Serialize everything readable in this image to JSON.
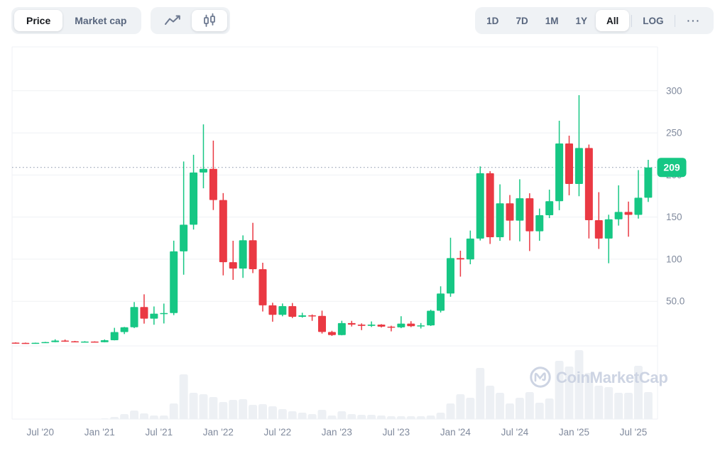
{
  "toolbar": {
    "metric_toggle": {
      "options": [
        "Price",
        "Market cap"
      ],
      "active": "Price"
    },
    "chart_type_toggle": {
      "options": [
        "line-chart",
        "candlestick-chart"
      ],
      "active": "candlestick-chart"
    },
    "range_buttons": [
      "1D",
      "7D",
      "1M",
      "1Y",
      "All"
    ],
    "active_range": "All",
    "log_button": "LOG",
    "more_button": "···"
  },
  "watermark": {
    "text": "CoinMarketCap"
  },
  "chart_data": {
    "type": "candlestick",
    "title": "",
    "xlabel": "",
    "ylabel": "",
    "ylim": [
      0,
      310
    ],
    "grid": true,
    "current_price": 209,
    "current_price_label": "209",
    "colors": {
      "up": "#16c784",
      "down": "#ea3943",
      "volume": "#edf0f4",
      "grid": "#eff1f4",
      "axis_text": "#808a9d",
      "dotted_line": "#9aa3b5",
      "watermark": "#cdd4e3",
      "badge_bg": "#16c784",
      "badge_text": "#ffffff"
    },
    "y_ticks": [
      {
        "label": "300",
        "value": 300
      },
      {
        "label": "250",
        "value": 250
      },
      {
        "label": "200",
        "value": 200
      },
      {
        "label": "150",
        "value": 150
      },
      {
        "label": "100",
        "value": 100
      },
      {
        "label": "50.0",
        "value": 50
      }
    ],
    "x_ticks": [
      {
        "label": "Jul '20",
        "index": 3
      },
      {
        "label": "Jan '21",
        "index": 9
      },
      {
        "label": "Jul '21",
        "index": 15
      },
      {
        "label": "Jan '22",
        "index": 21
      },
      {
        "label": "Jul '22",
        "index": 27
      },
      {
        "label": "Jan '23",
        "index": 33
      },
      {
        "label": "Jul '23",
        "index": 39
      },
      {
        "label": "Jan '24",
        "index": 45
      },
      {
        "label": "Jul '24",
        "index": 51
      },
      {
        "label": "Jan '25",
        "index": 57
      },
      {
        "label": "Jul '25",
        "index": 63
      }
    ],
    "candles": [
      {
        "m": "Apr '20",
        "o": 0.9,
        "h": 1.3,
        "l": 0.5,
        "c": 0.65,
        "v": 0
      },
      {
        "m": "May '20",
        "o": 0.65,
        "h": 1.0,
        "l": 0.45,
        "c": 0.55,
        "v": 0
      },
      {
        "m": "Jun '20",
        "o": 0.55,
        "h": 0.95,
        "l": 0.45,
        "c": 0.75,
        "v": 0
      },
      {
        "m": "Jul '20",
        "o": 0.75,
        "h": 1.9,
        "l": 0.6,
        "c": 1.6,
        "v": 0
      },
      {
        "m": "Aug '20",
        "o": 1.6,
        "h": 4.9,
        "l": 1.4,
        "c": 3.4,
        "v": 0
      },
      {
        "m": "Sep '20",
        "o": 3.4,
        "h": 4.6,
        "l": 1.9,
        "c": 2.5,
        "v": 0
      },
      {
        "m": "Oct '20",
        "o": 2.5,
        "h": 3.0,
        "l": 1.4,
        "c": 1.7,
        "v": 0
      },
      {
        "m": "Nov '20",
        "o": 1.7,
        "h": 2.7,
        "l": 1.2,
        "c": 2.2,
        "v": 0
      },
      {
        "m": "Dec '20",
        "o": 2.2,
        "h": 2.5,
        "l": 1.2,
        "c": 1.5,
        "v": 0
      },
      {
        "m": "Jan '21",
        "o": 1.5,
        "h": 4.7,
        "l": 1.3,
        "c": 3.8,
        "v": 1
      },
      {
        "m": "Feb '21",
        "o": 3.8,
        "h": 18.5,
        "l": 3.6,
        "c": 13.5,
        "v": 3
      },
      {
        "m": "Mar '21",
        "o": 13.5,
        "h": 19.6,
        "l": 11.1,
        "c": 19.2,
        "v": 7
      },
      {
        "m": "Apr '21",
        "o": 19.2,
        "h": 49.1,
        "l": 18.2,
        "c": 43.2,
        "v": 12
      },
      {
        "m": "May '21",
        "o": 43.2,
        "h": 58.3,
        "l": 23.5,
        "c": 29.4,
        "v": 8
      },
      {
        "m": "Jun '21",
        "o": 29.4,
        "h": 43.9,
        "l": 22.2,
        "c": 35.3,
        "v": 5
      },
      {
        "m": "Jul '21",
        "o": 35.3,
        "h": 47.3,
        "l": 23.7,
        "c": 36.1,
        "v": 5
      },
      {
        "m": "Aug '21",
        "o": 36.1,
        "h": 122.0,
        "l": 33.6,
        "c": 109.3,
        "v": 22
      },
      {
        "m": "Sep '21",
        "o": 109.3,
        "h": 216.0,
        "l": 81.6,
        "c": 140.9,
        "v": 63
      },
      {
        "m": "Oct '21",
        "o": 140.9,
        "h": 224.0,
        "l": 135.2,
        "c": 202.9,
        "v": 37
      },
      {
        "m": "Nov '21",
        "o": 202.9,
        "h": 260.1,
        "l": 184.2,
        "c": 207.3,
        "v": 35
      },
      {
        "m": "Dec '21",
        "o": 207.3,
        "h": 240.8,
        "l": 158.4,
        "c": 170.3,
        "v": 31
      },
      {
        "m": "Jan '22",
        "o": 170.3,
        "h": 178.5,
        "l": 80.8,
        "c": 96.5,
        "v": 24
      },
      {
        "m": "Feb '22",
        "o": 96.5,
        "h": 121.9,
        "l": 75.5,
        "c": 88.9,
        "v": 27
      },
      {
        "m": "Mar '22",
        "o": 88.9,
        "h": 128.3,
        "l": 77.8,
        "c": 122.5,
        "v": 28
      },
      {
        "m": "Apr '22",
        "o": 122.5,
        "h": 143.2,
        "l": 83.5,
        "c": 88.1,
        "v": 20
      },
      {
        "m": "May '22",
        "o": 88.1,
        "h": 95.8,
        "l": 37.9,
        "c": 45.2,
        "v": 21
      },
      {
        "m": "Jun '22",
        "o": 45.2,
        "h": 48.3,
        "l": 25.8,
        "c": 33.9,
        "v": 18
      },
      {
        "m": "Jul '22",
        "o": 33.9,
        "h": 47.4,
        "l": 32.2,
        "c": 44.3,
        "v": 14
      },
      {
        "m": "Aug '22",
        "o": 44.3,
        "h": 48.0,
        "l": 30.1,
        "c": 31.6,
        "v": 11
      },
      {
        "m": "Sep '22",
        "o": 31.6,
        "h": 36.4,
        "l": 30.6,
        "c": 33.3,
        "v": 9
      },
      {
        "m": "Oct '22",
        "o": 33.3,
        "h": 34.4,
        "l": 26.8,
        "c": 32.7,
        "v": 7
      },
      {
        "m": "Nov '22",
        "o": 32.7,
        "h": 38.9,
        "l": 11.7,
        "c": 13.6,
        "v": 13
      },
      {
        "m": "Dec '22",
        "o": 13.6,
        "h": 15.0,
        "l": 8.9,
        "c": 9.9,
        "v": 5
      },
      {
        "m": "Jan '23",
        "o": 9.9,
        "h": 26.9,
        "l": 9.6,
        "c": 24.1,
        "v": 11
      },
      {
        "m": "Feb '23",
        "o": 24.1,
        "h": 26.8,
        "l": 20.1,
        "c": 22.4,
        "v": 7
      },
      {
        "m": "Mar '23",
        "o": 22.4,
        "h": 23.8,
        "l": 15.8,
        "c": 20.9,
        "v": 6
      },
      {
        "m": "Apr '23",
        "o": 20.9,
        "h": 26.1,
        "l": 19.5,
        "c": 22.3,
        "v": 6
      },
      {
        "m": "May '23",
        "o": 22.3,
        "h": 22.9,
        "l": 18.9,
        "c": 19.9,
        "v": 5
      },
      {
        "m": "Jun '23",
        "o": 19.9,
        "h": 21.0,
        "l": 14.3,
        "c": 19.1,
        "v": 4
      },
      {
        "m": "Jul '23",
        "o": 19.1,
        "h": 32.3,
        "l": 18.1,
        "c": 23.5,
        "v": 4
      },
      {
        "m": "Aug '23",
        "o": 23.5,
        "h": 26.4,
        "l": 19.4,
        "c": 20.5,
        "v": 4
      },
      {
        "m": "Sep '23",
        "o": 20.5,
        "h": 24.2,
        "l": 17.7,
        "c": 21.4,
        "v": 4
      },
      {
        "m": "Oct '23",
        "o": 21.4,
        "h": 40.0,
        "l": 20.7,
        "c": 38.8,
        "v": 5
      },
      {
        "m": "Nov '23",
        "o": 38.8,
        "h": 67.8,
        "l": 36.7,
        "c": 59.2,
        "v": 9
      },
      {
        "m": "Dec '23",
        "o": 59.2,
        "h": 125.5,
        "l": 55.4,
        "c": 101.3,
        "v": 22
      },
      {
        "m": "Jan '24",
        "o": 101.3,
        "h": 110.1,
        "l": 79.3,
        "c": 99.7,
        "v": 35
      },
      {
        "m": "Feb '24",
        "o": 99.7,
        "h": 134.0,
        "l": 94.0,
        "c": 124.5,
        "v": 30
      },
      {
        "m": "Mar '24",
        "o": 124.5,
        "h": 210.2,
        "l": 122.2,
        "c": 202.1,
        "v": 72
      },
      {
        "m": "Apr '24",
        "o": 202.1,
        "h": 204.5,
        "l": 118.1,
        "c": 126.1,
        "v": 47
      },
      {
        "m": "May '24",
        "o": 126.1,
        "h": 188.9,
        "l": 121.8,
        "c": 166.4,
        "v": 37
      },
      {
        "m": "Jun '24",
        "o": 166.4,
        "h": 176.2,
        "l": 122.3,
        "c": 145.8,
        "v": 22
      },
      {
        "m": "Jul '24",
        "o": 145.8,
        "h": 194.9,
        "l": 121.2,
        "c": 172.4,
        "v": 30
      },
      {
        "m": "Aug '24",
        "o": 172.4,
        "h": 178.3,
        "l": 109.7,
        "c": 133.1,
        "v": 38
      },
      {
        "m": "Sep '24",
        "o": 133.1,
        "h": 160.1,
        "l": 121.9,
        "c": 152.2,
        "v": 23
      },
      {
        "m": "Oct '24",
        "o": 152.2,
        "h": 182.6,
        "l": 148.8,
        "c": 168.9,
        "v": 29
      },
      {
        "m": "Nov '24",
        "o": 168.9,
        "h": 264.4,
        "l": 158.2,
        "c": 237.4,
        "v": 82
      },
      {
        "m": "Dec '24",
        "o": 237.4,
        "h": 246.7,
        "l": 175.9,
        "c": 189.3,
        "v": 74
      },
      {
        "m": "Jan '25",
        "o": 189.3,
        "h": 294.8,
        "l": 174.8,
        "c": 232.0,
        "v": 97
      },
      {
        "m": "Feb '25",
        "o": 232.0,
        "h": 236.2,
        "l": 124.6,
        "c": 146.3,
        "v": 65
      },
      {
        "m": "Mar '25",
        "o": 146.3,
        "h": 179.6,
        "l": 112.2,
        "c": 124.5,
        "v": 47
      },
      {
        "m": "Apr '25",
        "o": 124.5,
        "h": 152.8,
        "l": 95.2,
        "c": 147.4,
        "v": 45
      },
      {
        "m": "May '25",
        "o": 147.4,
        "h": 187.7,
        "l": 139.9,
        "c": 156.1,
        "v": 37
      },
      {
        "m": "Jun '25",
        "o": 156.1,
        "h": 168.4,
        "l": 126.7,
        "c": 152.6,
        "v": 37
      },
      {
        "m": "Jul '25",
        "o": 152.6,
        "h": 205.8,
        "l": 148.2,
        "c": 173.0,
        "v": 75
      },
      {
        "m": "Aug '25",
        "o": 173.0,
        "h": 218.0,
        "l": 168.0,
        "c": 209.0,
        "v": 38
      }
    ]
  }
}
